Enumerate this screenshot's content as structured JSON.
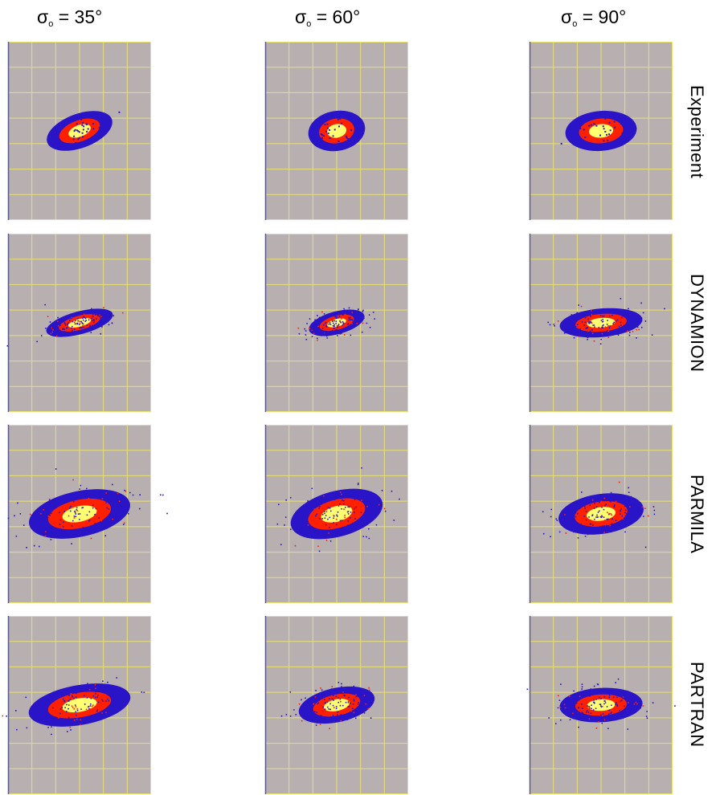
{
  "columns": [
    {
      "symbol": "σ",
      "sub": "o",
      "value": "= 35°"
    },
    {
      "symbol": "σ",
      "sub": "o",
      "value": "= 60°"
    },
    {
      "symbol": "σ",
      "sub": "o",
      "value": "= 90°"
    }
  ],
  "rows": [
    "Experiment",
    "DYNAMION",
    "PARMILA",
    "PARTRAN"
  ],
  "colors": {
    "panel_bg": "#b7afb0",
    "grid": "#e8e070",
    "core": "#ffff70",
    "mid": "#ff2000",
    "outer": "#2a14c8",
    "left_edge": "#5a5a8a"
  },
  "chart_data": {
    "type": "heatmap",
    "title": "",
    "xlabel": "",
    "ylabel": "",
    "grid": true,
    "grid_divisions": {
      "x": 6,
      "y": 7
    },
    "panels": [
      {
        "row": "Experiment",
        "column": "σo = 35°",
        "tilt_deg": -20,
        "spread_x": 0.24,
        "spread_y": 0.06,
        "scatter": false
      },
      {
        "row": "Experiment",
        "column": "σo = 60°",
        "tilt_deg": -10,
        "spread_x": 0.2,
        "spread_y": 0.07,
        "scatter": false
      },
      {
        "row": "Experiment",
        "column": "σo = 90°",
        "tilt_deg": -5,
        "spread_x": 0.25,
        "spread_y": 0.07,
        "scatter": false
      },
      {
        "row": "DYNAMION",
        "column": "σo = 35°",
        "tilt_deg": -15,
        "spread_x": 0.24,
        "spread_y": 0.04,
        "scatter": true
      },
      {
        "row": "DYNAMION",
        "column": "σo = 60°",
        "tilt_deg": -15,
        "spread_x": 0.2,
        "spread_y": 0.04,
        "scatter": true
      },
      {
        "row": "DYNAMION",
        "column": "σo = 90°",
        "tilt_deg": -5,
        "spread_x": 0.29,
        "spread_y": 0.05,
        "scatter": true
      },
      {
        "row": "PARMILA",
        "column": "σo = 35°",
        "tilt_deg": -12,
        "spread_x": 0.36,
        "spread_y": 0.08,
        "scatter": true
      },
      {
        "row": "PARMILA",
        "column": "σo = 60°",
        "tilt_deg": -15,
        "spread_x": 0.33,
        "spread_y": 0.08,
        "scatter": true
      },
      {
        "row": "PARMILA",
        "column": "σo = 90°",
        "tilt_deg": -8,
        "spread_x": 0.3,
        "spread_y": 0.07,
        "scatter": true
      },
      {
        "row": "PARTRAN",
        "column": "σo = 35°",
        "tilt_deg": -10,
        "spread_x": 0.36,
        "spread_y": 0.07,
        "scatter": true
      },
      {
        "row": "PARTRAN",
        "column": "σo = 60°",
        "tilt_deg": -12,
        "spread_x": 0.27,
        "spread_y": 0.06,
        "scatter": true
      },
      {
        "row": "PARTRAN",
        "column": "σo = 90°",
        "tilt_deg": -3,
        "spread_x": 0.29,
        "spread_y": 0.06,
        "scatter": true
      }
    ]
  }
}
